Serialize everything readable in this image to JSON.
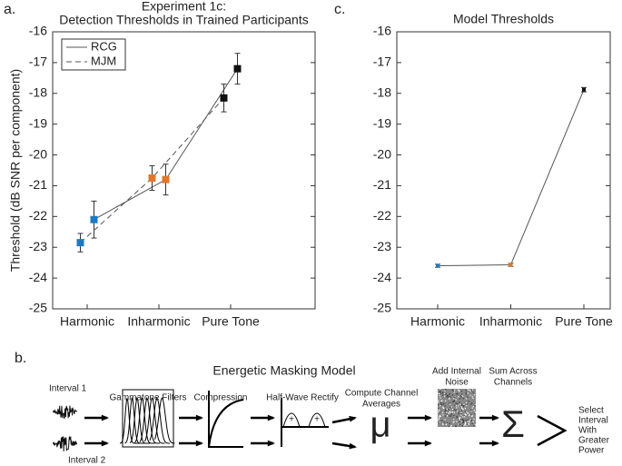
{
  "panel_labels": [
    "a.",
    "c.",
    "b."
  ],
  "chart_data": [
    {
      "type": "line",
      "title": "Experiment 1c:",
      "subtitle": "Detection Thresholds in Trained Participants",
      "y_label": "Threshold (dB SNR per component)",
      "categories": [
        "Harmonic",
        "Inharmonic",
        "Pure Tone"
      ],
      "point_colors": [
        "#1f78c0",
        "#e0782a",
        "#111111"
      ],
      "series": [
        {
          "name": "RCG",
          "color": "#555555",
          "dash": false,
          "values": [
            -22.1,
            -20.8,
            -17.2
          ],
          "errors": [
            0.6,
            0.5,
            0.5
          ]
        },
        {
          "name": "MJM",
          "color": "#555555",
          "dash": true,
          "values": [
            -22.85,
            -20.75,
            -18.15
          ],
          "errors": [
            0.3,
            0.4,
            0.45
          ]
        }
      ],
      "ylim": [
        -25,
        -16
      ],
      "yticks": [
        -25,
        -24,
        -23,
        -22,
        -21,
        -20,
        -19,
        -18,
        -17,
        -16
      ],
      "legend": "upper left"
    },
    {
      "type": "line",
      "title": "Model Thresholds",
      "categories": [
        "Harmonic",
        "Inharmonic",
        "Pure Tone"
      ],
      "point_colors": [
        "#1f78c0",
        "#e0782a",
        "#111111"
      ],
      "series": [
        {
          "color": "#555555",
          "values": [
            -23.6,
            -23.57,
            -17.88
          ],
          "errors": [
            0.05,
            0.05,
            0.07
          ]
        }
      ],
      "ylim": [
        -25,
        -16
      ],
      "yticks": [
        -25,
        -24,
        -23,
        -22,
        -21,
        -20,
        -19,
        -18,
        -17,
        -16
      ]
    }
  ],
  "diagram": {
    "title": "Energetic Masking Model",
    "interval_1": "Interval 1",
    "interval_2": "Interval 2",
    "stages": [
      [
        "Gammatone Filters"
      ],
      [
        "Compression"
      ],
      [
        "Half-Wave Rectify"
      ],
      [
        "Compute Channel",
        "Averages"
      ],
      [
        "Add Internal",
        "Noise"
      ],
      [
        "Sum Across",
        "Channels"
      ],
      [
        "Select",
        "Interval",
        "With",
        "Greater",
        "Power"
      ]
    ],
    "symbols": {
      "plus": "+",
      "mu": "μ",
      "sigma": "Σ"
    }
  }
}
